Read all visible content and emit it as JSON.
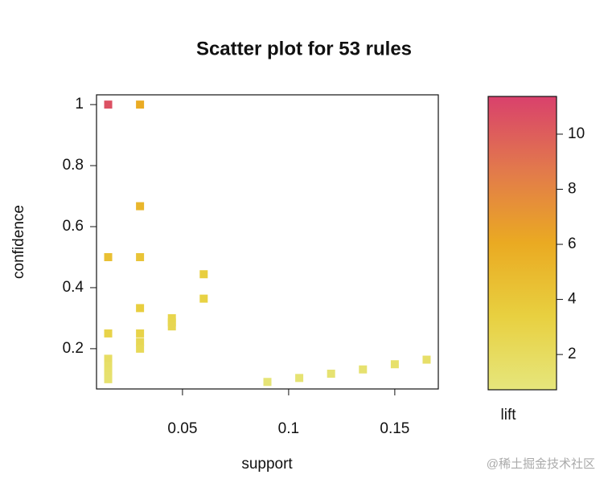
{
  "chart_data": {
    "type": "scatter",
    "title": "Scatter plot for 53 rules",
    "x_label": "support",
    "y_label": "confidence",
    "x": [
      0.015,
      0.03,
      0.03,
      0.015,
      0.03,
      0.06,
      0.06,
      0.03,
      0.045,
      0.045,
      0.045,
      0.015,
      0.03,
      0.03,
      0.03,
      0.015,
      0.015,
      0.015,
      0.015,
      0.015,
      0.09,
      0.105,
      0.12,
      0.135,
      0.15,
      0.165
    ],
    "values": [
      1.0,
      1.0,
      0.667,
      0.5,
      0.5,
      0.444,
      0.364,
      0.333,
      0.3,
      0.286,
      0.273,
      0.25,
      0.25,
      0.222,
      0.2,
      0.167,
      0.143,
      0.125,
      0.111,
      0.1,
      0.091,
      0.104,
      0.118,
      0.132,
      0.149,
      0.164
    ],
    "lift": [
      10.6,
      6.0,
      5.2,
      4.5,
      4.2,
      3.5,
      3.2,
      3.5,
      2.8,
      2.7,
      2.6,
      3.0,
      3.0,
      2.5,
      2.3,
      1.8,
      1.6,
      1.5,
      1.4,
      1.3,
      1.0,
      1.1,
      1.2,
      1.3,
      1.5,
      1.6
    ],
    "xlim": [
      0.0095,
      0.1705
    ],
    "xticks": [
      0.05,
      0.1,
      0.15
    ],
    "ylim": [
      0.068,
      1.032
    ],
    "yticks": [
      0.2,
      0.4,
      0.6,
      0.8,
      1
    ],
    "colorbar": {
      "title": "lift",
      "lim": [
        0.72,
        11.37
      ],
      "ticks": [
        2,
        4,
        6,
        8,
        10
      ],
      "colors": [
        "#e6e67c",
        "#e8d040",
        "#eaaa22",
        "#e2794c",
        "#d9416c"
      ]
    },
    "watermark": "@稀土掘金技术社区"
  }
}
